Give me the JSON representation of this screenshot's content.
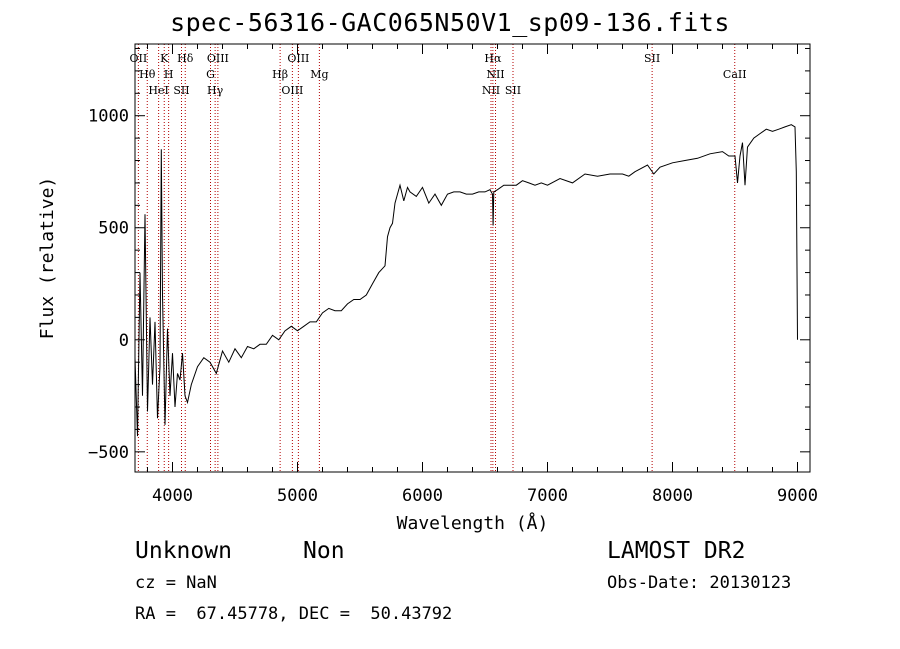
{
  "chart_data": {
    "type": "line",
    "title": "spec-56316-GAC065N50V1_sp09-136.fits",
    "xlabel": "Wavelength (Å)",
    "ylabel": "Flux (relative)",
    "xlim": [
      3700,
      9100
    ],
    "ylim": [
      -590,
      1320
    ],
    "xticks": [
      4000,
      5000,
      6000,
      7000,
      8000,
      9000
    ],
    "yticks": [
      -500,
      0,
      500,
      1000
    ],
    "grid": false,
    "series": [
      {
        "x": [
          3700,
          3720,
          3740,
          3760,
          3780,
          3800,
          3820,
          3840,
          3860,
          3880,
          3900,
          3910,
          3920,
          3940,
          3960,
          3980,
          4000,
          4020,
          4040,
          4060,
          4080,
          4100,
          4120,
          4150,
          4200,
          4250,
          4300,
          4350,
          4400,
          4450,
          4500,
          4550,
          4600,
          4650,
          4700,
          4750,
          4800,
          4850,
          4900,
          4950,
          5000,
          5050,
          5100,
          5150,
          5200,
          5250,
          5300,
          5350,
          5400,
          5450,
          5500,
          5550,
          5600,
          5650,
          5700,
          5720,
          5740,
          5760,
          5780,
          5800,
          5820,
          5850,
          5880,
          5900,
          5950,
          6000,
          6050,
          6100,
          6150,
          6200,
          6250,
          6300,
          6350,
          6400,
          6450,
          6500,
          6540,
          6560,
          6565,
          6570,
          6600,
          6650,
          6700,
          6750,
          6800,
          6850,
          6900,
          6950,
          7000,
          7100,
          7200,
          7300,
          7400,
          7500,
          7600,
          7650,
          7700,
          7800,
          7850,
          7900,
          8000,
          8100,
          8200,
          8300,
          8400,
          8450,
          8500,
          8520,
          8540,
          8560,
          8580,
          8600,
          8650,
          8700,
          8750,
          8800,
          8850,
          8900,
          8950,
          8980,
          8990,
          9000
        ],
        "y": [
          -80,
          -430,
          300,
          -250,
          560,
          -320,
          100,
          -200,
          80,
          -350,
          -120,
          850,
          200,
          -380,
          50,
          -250,
          -60,
          -300,
          -150,
          -180,
          -60,
          -250,
          -280,
          -200,
          -120,
          -80,
          -100,
          -150,
          -50,
          -100,
          -40,
          -80,
          -30,
          -40,
          -20,
          -20,
          20,
          0,
          40,
          60,
          40,
          60,
          80,
          80,
          120,
          140,
          130,
          130,
          160,
          180,
          180,
          200,
          250,
          300,
          330,
          460,
          500,
          520,
          610,
          650,
          690,
          620,
          680,
          660,
          640,
          680,
          610,
          650,
          600,
          650,
          660,
          660,
          650,
          650,
          660,
          660,
          670,
          650,
          510,
          660,
          670,
          690,
          690,
          690,
          710,
          700,
          690,
          700,
          690,
          720,
          700,
          740,
          730,
          740,
          740,
          730,
          750,
          780,
          740,
          770,
          790,
          800,
          810,
          830,
          840,
          820,
          820,
          700,
          820,
          880,
          690,
          860,
          900,
          920,
          940,
          930,
          940,
          950,
          960,
          950,
          750,
          0
        ]
      }
    ],
    "line_markers": [
      {
        "x": 3727,
        "label": "OII"
      },
      {
        "x": 3798,
        "label": "Hθ"
      },
      {
        "x": 3889,
        "label": "HeI"
      },
      {
        "x": 3934,
        "label": "K"
      },
      {
        "x": 3969,
        "label": "H"
      },
      {
        "x": 4072,
        "label": "SII"
      },
      {
        "x": 4102,
        "label": "Hδ"
      },
      {
        "x": 4304,
        "label": "G"
      },
      {
        "x": 4341,
        "label": "Hγ"
      },
      {
        "x": 4363,
        "label": "OIII"
      },
      {
        "x": 4861,
        "label": "Hβ"
      },
      {
        "x": 4959,
        "label": "OIII"
      },
      {
        "x": 5007,
        "label": "OIII"
      },
      {
        "x": 5175,
        "label": "Mg"
      },
      {
        "x": 6548,
        "label": "NII"
      },
      {
        "x": 6563,
        "label": "Hα"
      },
      {
        "x": 6584,
        "label": "NII"
      },
      {
        "x": 6724,
        "label": "SII"
      },
      {
        "x": 7837,
        "label": "SII"
      },
      {
        "x": 8498,
        "label": "CaII"
      }
    ],
    "marker_color": "#b30000"
  },
  "footer": {
    "object_class": "Unknown",
    "object_subclass": "Non",
    "survey": "LAMOST DR2",
    "cz": "cz = NaN",
    "obs_date": "Obs-Date: 20130123",
    "coords": "RA =  67.45778, DEC =  50.43792"
  }
}
